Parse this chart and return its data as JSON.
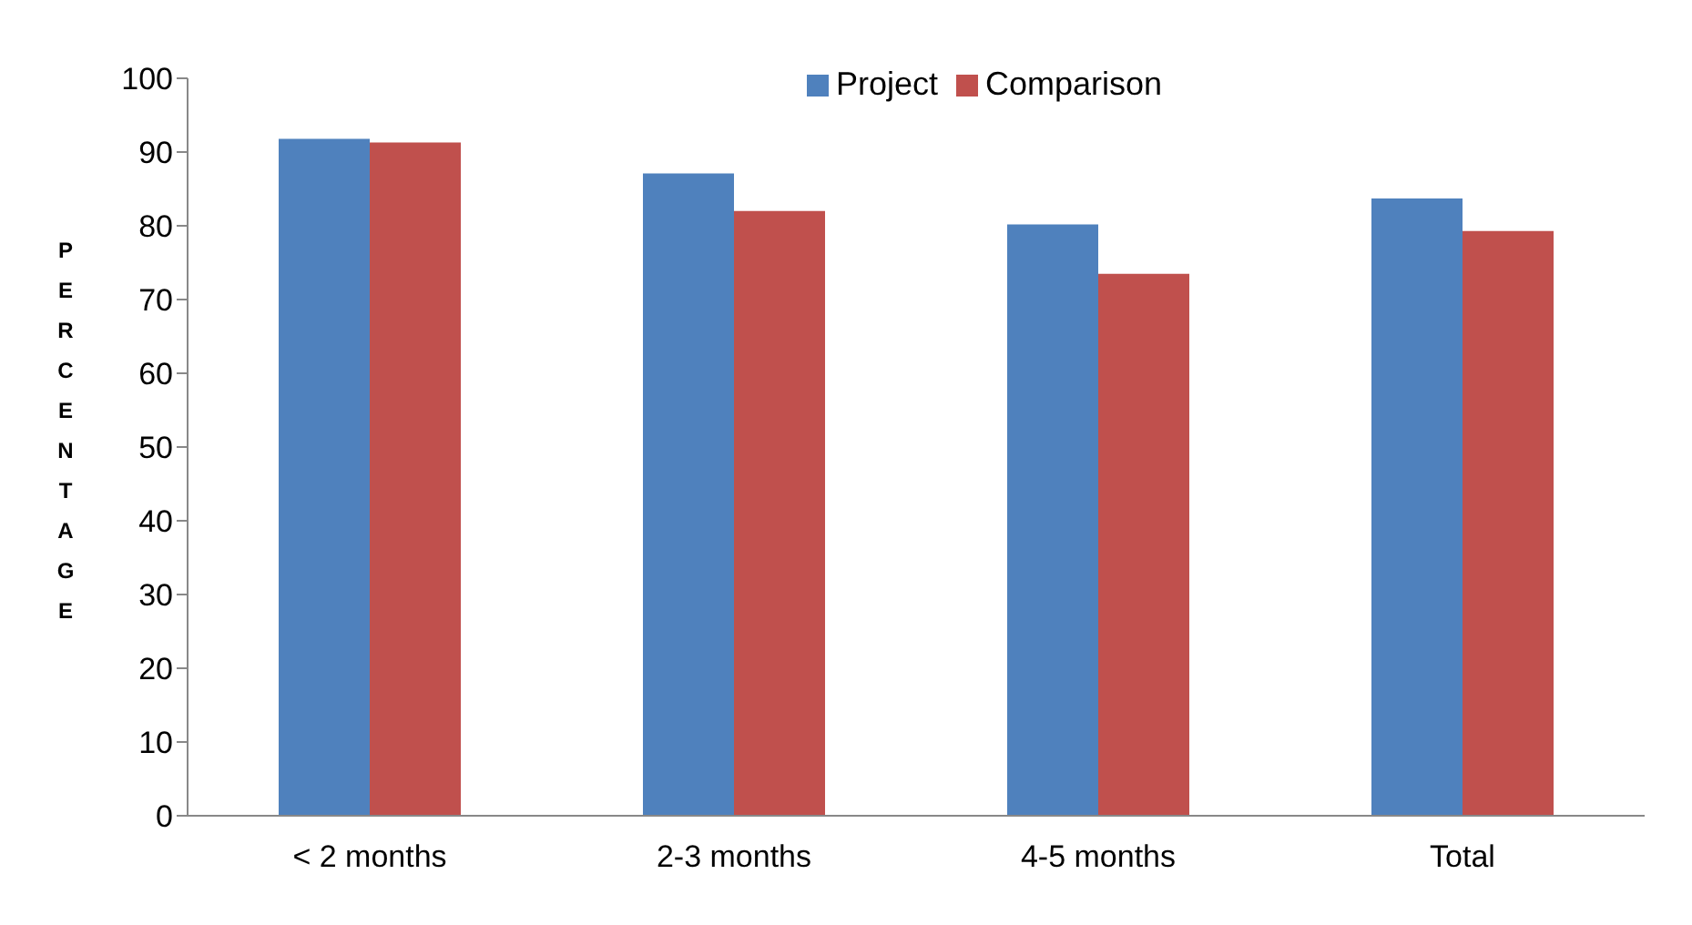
{
  "chart_data": {
    "type": "bar",
    "ylabel": "PERCENTAGE",
    "categories": [
      "< 2 months",
      "2-3 months",
      "4-5 months",
      "Total"
    ],
    "series": [
      {
        "name": "Project",
        "color": "#4f81bd",
        "values": [
          91.8,
          87.1,
          80.2,
          83.7
        ]
      },
      {
        "name": "Comparison",
        "color": "#c0504d",
        "values": [
          91.3,
          82.0,
          73.5,
          79.3
        ]
      }
    ],
    "ylim": [
      0,
      100
    ],
    "yticks": [
      0,
      10,
      20,
      30,
      40,
      50,
      60,
      70,
      80,
      90,
      100
    ],
    "grid": false,
    "legend": "top"
  }
}
